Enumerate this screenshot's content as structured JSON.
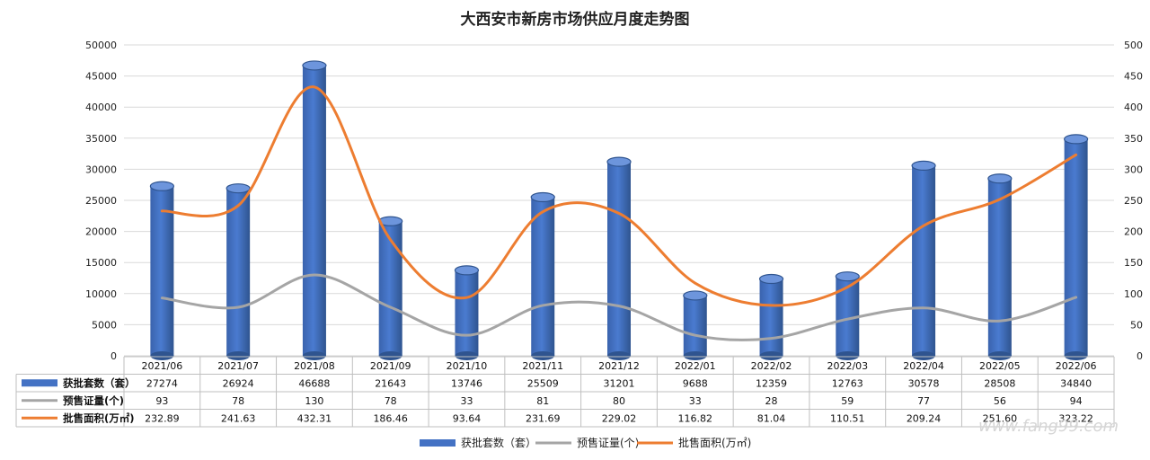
{
  "chart_data": {
    "type": "bar",
    "title": "大西安市新房市场供应月度走势图",
    "categories": [
      "2021/06",
      "2021/07",
      "2021/08",
      "2021/09",
      "2021/10",
      "2021/11",
      "2021/12",
      "2022/01",
      "2022/02",
      "2022/03",
      "2022/04",
      "2022/05",
      "2022/06"
    ],
    "left_axis": {
      "min": 0,
      "max": 50000,
      "step": 5000,
      "ticks": [
        "0",
        "5000",
        "10000",
        "15000",
        "20000",
        "25000",
        "30000",
        "35000",
        "40000",
        "45000",
        "50000"
      ]
    },
    "right_axis": {
      "min": 0,
      "max": 500,
      "step": 50,
      "ticks": [
        "0",
        "50",
        "100",
        "150",
        "200",
        "250",
        "300",
        "350",
        "400",
        "450",
        "500"
      ]
    },
    "grid": true,
    "legend_position": "bottom",
    "series": [
      {
        "name": "获批套数（套）",
        "type": "bar",
        "axis": "left",
        "color": "#4472c4",
        "values": [
          27274,
          26924,
          46688,
          21643,
          13746,
          25509,
          31201,
          9688,
          12359,
          12763,
          30578,
          28508,
          34840
        ],
        "labels": [
          "27274",
          "26924",
          "46688",
          "21643",
          "13746",
          "25509",
          "31201",
          "9688",
          "12359",
          "12763",
          "30578",
          "28508",
          "34840"
        ]
      },
      {
        "name": "预售证量(个)",
        "type": "line",
        "axis": "right",
        "color": "#a5a5a5",
        "values": [
          93,
          78,
          130,
          78,
          33,
          81,
          80,
          33,
          28,
          59,
          77,
          56,
          94
        ],
        "labels": [
          "93",
          "78",
          "130",
          "78",
          "33",
          "81",
          "80",
          "33",
          "28",
          "59",
          "77",
          "56",
          "94"
        ]
      },
      {
        "name": "批售面积(万㎡)",
        "type": "line",
        "axis": "right",
        "color": "#ed7d31",
        "values": [
          232.89,
          241.63,
          432.31,
          186.46,
          93.64,
          231.69,
          229.02,
          116.82,
          81.04,
          110.51,
          209.24,
          251.6,
          323.22
        ],
        "labels": [
          "232.89",
          "241.63",
          "432.31",
          "186.46",
          "93.64",
          "231.69",
          "229.02",
          "116.82",
          "81.04",
          "110.51",
          "209.24",
          "251.60",
          "323.22"
        ]
      }
    ]
  },
  "watermark": "www.fang99.com"
}
